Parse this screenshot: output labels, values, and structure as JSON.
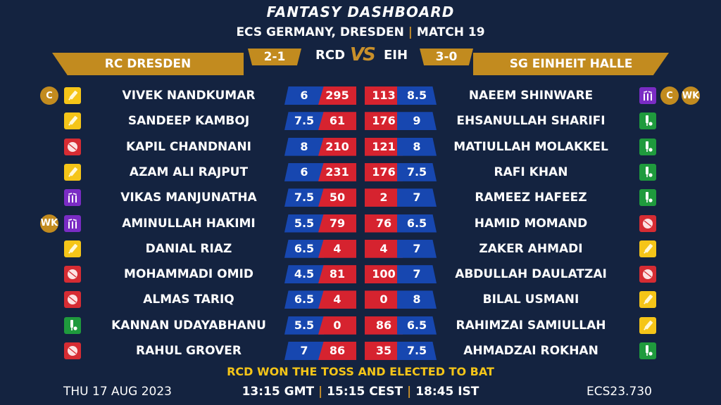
{
  "title": "FANTASY DASHBOARD",
  "subtitle": {
    "event": "ECS GERMANY, DRESDEN",
    "sep": "|",
    "match": "MATCH 19"
  },
  "teams": {
    "left": {
      "name": "RC DRESDEN",
      "abbr": "RCD",
      "record": "2-1"
    },
    "right": {
      "name": "SG EINHEIT HALLE",
      "abbr": "EIH",
      "record": "3-0"
    },
    "vs": "VS"
  },
  "colors": {
    "background": "#142340",
    "gold": "#c28b1f",
    "credit_blue": "#1747b0",
    "points_red": "#d6232f",
    "toss_yellow": "#f5c518"
  },
  "rows": [
    {
      "left": {
        "name": "VIVEK NANDKUMAR",
        "credit": "6",
        "points": "295",
        "role": "bat",
        "badges": [
          "C"
        ]
      },
      "right": {
        "name": "NAEEM SHINWARE",
        "credit": "8.5",
        "points": "113",
        "role": "wk",
        "badges": [
          "C",
          "WK"
        ]
      }
    },
    {
      "left": {
        "name": "SANDEEP KAMBOJ",
        "credit": "7.5",
        "points": "61",
        "role": "bat",
        "badges": []
      },
      "right": {
        "name": "EHSANULLAH SHARIFI",
        "credit": "9",
        "points": "176",
        "role": "ar",
        "badges": []
      }
    },
    {
      "left": {
        "name": "KAPIL CHANDNANI",
        "credit": "8",
        "points": "210",
        "role": "bowl",
        "badges": []
      },
      "right": {
        "name": "MATIULLAH MOLAKKEL",
        "credit": "8",
        "points": "121",
        "role": "ar",
        "badges": []
      }
    },
    {
      "left": {
        "name": "AZAM ALI RAJPUT",
        "credit": "6",
        "points": "231",
        "role": "bat",
        "badges": []
      },
      "right": {
        "name": "RAFI KHAN",
        "credit": "7.5",
        "points": "176",
        "role": "ar",
        "badges": []
      }
    },
    {
      "left": {
        "name": "VIKAS MANJUNATHA",
        "credit": "7.5",
        "points": "50",
        "role": "wk",
        "badges": []
      },
      "right": {
        "name": "RAMEEZ HAFEEZ",
        "credit": "7",
        "points": "2",
        "role": "ar",
        "badges": []
      }
    },
    {
      "left": {
        "name": "AMINULLAH HAKIMI",
        "credit": "5.5",
        "points": "79",
        "role": "wk",
        "badges": [
          "WK"
        ]
      },
      "right": {
        "name": "HAMID MOMAND",
        "credit": "6.5",
        "points": "76",
        "role": "bowl",
        "badges": []
      }
    },
    {
      "left": {
        "name": "DANIAL RIAZ",
        "credit": "6.5",
        "points": "4",
        "role": "bat",
        "badges": []
      },
      "right": {
        "name": "ZAKER AHMADI",
        "credit": "7",
        "points": "4",
        "role": "bat",
        "badges": []
      }
    },
    {
      "left": {
        "name": "MOHAMMADI OMID",
        "credit": "4.5",
        "points": "81",
        "role": "bowl",
        "badges": []
      },
      "right": {
        "name": "ABDULLAH DAULATZAI",
        "credit": "7",
        "points": "100",
        "role": "bowl",
        "badges": []
      }
    },
    {
      "left": {
        "name": "ALMAS TARIQ",
        "credit": "6.5",
        "points": "4",
        "role": "bowl",
        "badges": []
      },
      "right": {
        "name": "BILAL USMANI",
        "credit": "8",
        "points": "0",
        "role": "bat",
        "badges": []
      }
    },
    {
      "left": {
        "name": "KANNAN UDAYABHANU",
        "credit": "5.5",
        "points": "0",
        "role": "ar",
        "badges": []
      },
      "right": {
        "name": "RAHIMZAI SAMIULLAH",
        "credit": "6.5",
        "points": "86",
        "role": "bat",
        "badges": []
      }
    },
    {
      "left": {
        "name": "RAHUL GROVER",
        "credit": "7",
        "points": "86",
        "role": "bowl",
        "badges": []
      },
      "right": {
        "name": "AHMADZAI ROKHAN",
        "credit": "7.5",
        "points": "35",
        "role": "ar",
        "badges": []
      }
    }
  ],
  "role_icons": {
    "bat": "cricket-bat-icon",
    "bowl": "cricket-ball-icon",
    "wk": "wicket-stumps-icon",
    "ar": "allrounder-bat-ball-icon"
  },
  "footer": {
    "toss": "RCD WON THE TOSS AND ELECTED TO BAT",
    "date": "THU 17 AUG 2023",
    "times": [
      "13:15 GMT",
      "15:15 CEST",
      "18:45 IST"
    ],
    "time_sep": "|",
    "code": "ECS23.730"
  }
}
